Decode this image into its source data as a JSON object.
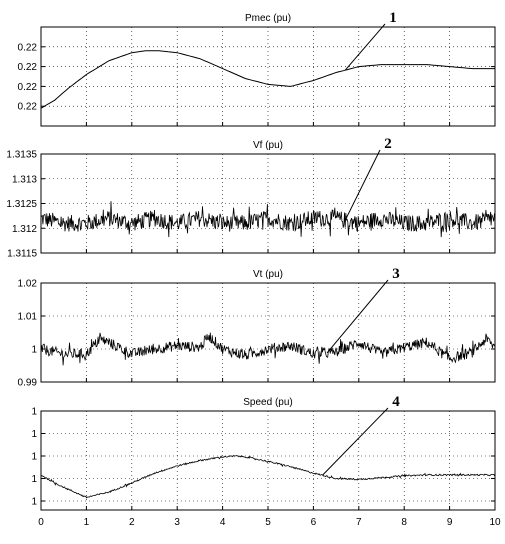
{
  "chart_data": [
    {
      "type": "line",
      "title": "Pmec (pu)",
      "annotation": "1",
      "xlim": [
        0,
        10
      ],
      "ylim": [
        0.2185,
        0.2235
      ],
      "yticks": [
        0.2195,
        0.2205,
        0.2215,
        0.2225
      ],
      "ytick_labels": [
        "0.22",
        "0.22",
        "0.22",
        "0.22"
      ],
      "grid": true,
      "noise": 0,
      "series": [
        {
          "x": [
            0,
            0.3,
            0.6,
            1.0,
            1.5,
            2.0,
            2.3,
            2.6,
            3.0,
            3.5,
            4.0,
            4.5,
            5.0,
            5.5,
            6.0,
            6.5,
            7.0,
            7.5,
            8.0,
            8.5,
            9.0,
            9.5,
            10.0
          ],
          "y": [
            0.2194,
            0.2198,
            0.2204,
            0.2211,
            0.2218,
            0.2222,
            0.2223,
            0.2223,
            0.2222,
            0.2219,
            0.2214,
            0.2209,
            0.2206,
            0.2205,
            0.2208,
            0.2212,
            0.2215,
            0.2216,
            0.2216,
            0.2216,
            0.2215,
            0.2214,
            0.2214
          ]
        }
      ]
    },
    {
      "type": "line",
      "title": "Vf (pu)",
      "annotation": "2",
      "xlim": [
        0,
        10
      ],
      "ylim": [
        1.3115,
        1.3135
      ],
      "yticks": [
        1.3115,
        1.312,
        1.3125,
        1.313,
        1.3135
      ],
      "ytick_labels": [
        "1.3115",
        "1.312",
        "1.3125",
        "1.313",
        "1.3135"
      ],
      "grid": true,
      "noise": 0.00017,
      "series": [
        {
          "x": [
            0,
            0.5,
            1.0,
            1.5,
            2.0,
            2.5,
            3.0,
            3.5,
            4.0,
            4.5,
            5.0,
            5.5,
            6.0,
            6.5,
            7.0,
            7.5,
            8.0,
            8.5,
            9.0,
            9.5,
            10.0
          ],
          "y": [
            1.3122,
            1.3121,
            1.3121,
            1.3122,
            1.3121,
            1.3122,
            1.3121,
            1.3122,
            1.3121,
            1.3121,
            1.3122,
            1.3121,
            1.3122,
            1.3122,
            1.3121,
            1.3122,
            1.3121,
            1.3121,
            1.3122,
            1.3121,
            1.3122
          ]
        }
      ]
    },
    {
      "type": "line",
      "title": "Vt (pu)",
      "annotation": "3",
      "xlim": [
        0,
        10
      ],
      "ylim": [
        0.99,
        1.02
      ],
      "yticks": [
        0.99,
        1.0,
        1.01,
        1.02
      ],
      "ytick_labels": [
        "0.99",
        "1",
        "1.01",
        "1.02"
      ],
      "grid": true,
      "noise": 0.0016,
      "series": [
        {
          "x": [
            0,
            0.5,
            1.0,
            1.3,
            1.5,
            2.0,
            2.5,
            3.0,
            3.5,
            3.7,
            4.0,
            4.5,
            5.0,
            5.5,
            6.0,
            6.5,
            7.0,
            7.5,
            8.0,
            8.5,
            9.0,
            9.5,
            9.8,
            10.0
          ],
          "y": [
            1.0,
            0.9985,
            0.9985,
            1.003,
            1.002,
            0.9985,
            1.0,
            1.001,
            1.0005,
            1.004,
            1.0,
            0.998,
            1.0,
            1.001,
            0.9985,
            0.999,
            1.002,
            0.9985,
            1.0005,
            1.002,
            0.997,
            0.999,
            1.003,
            1.0005
          ]
        }
      ]
    },
    {
      "type": "line",
      "title": "Speed (pu)",
      "annotation": "4",
      "xlim": [
        0,
        10
      ],
      "ylim": [
        0.99965,
        1.00075
      ],
      "yticks": [
        0.99975,
        1.0,
        1.00025,
        1.0005,
        1.00075
      ],
      "ytick_labels": [
        "1",
        "1",
        "1",
        "1",
        "1"
      ],
      "grid": true,
      "noise": 8e-06,
      "series": [
        {
          "x": [
            0,
            0.3,
            0.6,
            1.0,
            1.5,
            2.0,
            2.5,
            3.0,
            3.5,
            4.0,
            4.3,
            4.5,
            5.0,
            5.5,
            6.0,
            6.5,
            7.0,
            7.5,
            8.0,
            8.5,
            9.0,
            9.5,
            10.0
          ],
          "y": [
            1.00004,
            0.99995,
            0.99988,
            0.99979,
            0.99985,
            0.99995,
            1.00006,
            1.00014,
            1.0002,
            1.00024,
            1.00025,
            1.00024,
            1.00019,
            1.00013,
            1.00006,
            1.0,
            0.99999,
            1.00001,
            1.00003,
            1.00004,
            1.00004,
            1.00004,
            1.00004
          ]
        }
      ]
    }
  ],
  "xticks": [
    0,
    1,
    2,
    3,
    4,
    5,
    6,
    7,
    8,
    9,
    10
  ],
  "xtick_labels": [
    "0",
    "1",
    "2",
    "3",
    "4",
    "5",
    "6",
    "7",
    "8",
    "9",
    "10"
  ]
}
